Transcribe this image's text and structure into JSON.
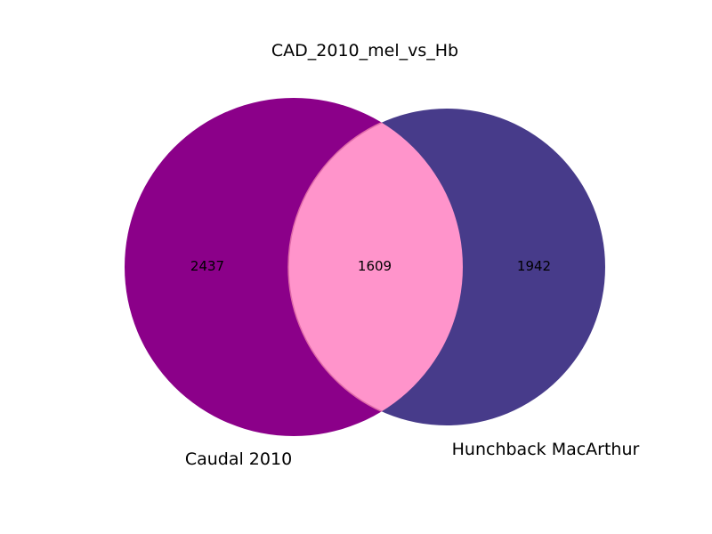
{
  "title": "CAD_2010_mel_vs_Hb",
  "sets": [
    {
      "name": "Caudal 2010",
      "only_count": "2437",
      "color": "#8b0089"
    },
    {
      "name": "Hunchback MacArthur",
      "only_count": "1942",
      "color": "#473b8a"
    }
  ],
  "intersection": {
    "count": "1609",
    "color": "#ff94cb"
  }
}
